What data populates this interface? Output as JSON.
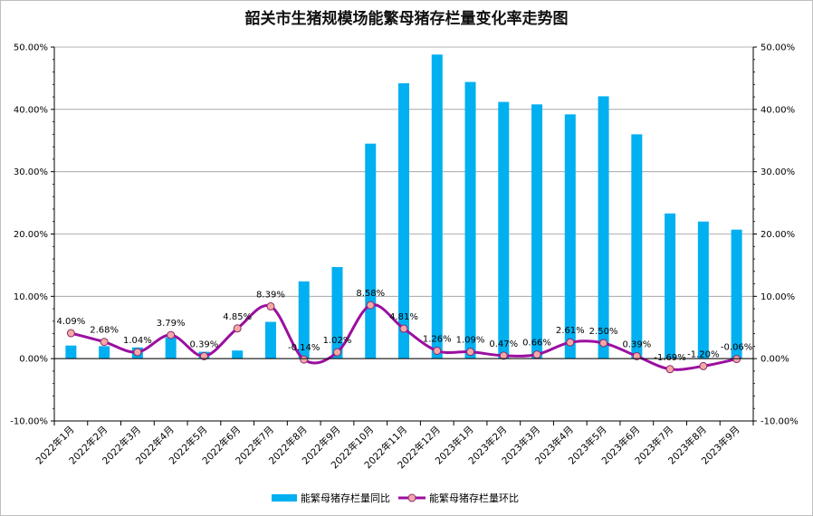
{
  "chart_data": {
    "type": "bar+line",
    "title": "韶关市生猪规模场能繁母猪存栏量变化率走势图",
    "categories": [
      "2022年1月",
      "2022年2月",
      "2022年3月",
      "2022年4月",
      "2022年5月",
      "2022年6月",
      "2022年7月",
      "2022年8月",
      "2022年9月",
      "2022年10月",
      "2022年11月",
      "2022年12月",
      "2023年1月",
      "2023年2月",
      "2023年3月",
      "2023年4月",
      "2023年5月",
      "2023年6月",
      "2023年7月",
      "2023年8月",
      "2023年9月"
    ],
    "series": [
      {
        "name": "能繁母猪存栏量同比",
        "type": "bar",
        "color": "#00b0f0",
        "values": [
          2.1,
          2.0,
          1.8,
          3.4,
          1.1,
          1.3,
          5.9,
          12.4,
          14.7,
          34.5,
          44.2,
          48.8,
          44.4,
          41.2,
          40.8,
          39.2,
          42.1,
          36.0,
          23.3,
          22.0,
          20.7
        ]
      },
      {
        "name": "能繁母猪存栏量环比",
        "type": "line",
        "color": "#9b0fa0",
        "marker_color": "#f4a9a8",
        "values": [
          4.09,
          2.68,
          1.04,
          3.79,
          0.39,
          4.85,
          8.39,
          -0.14,
          1.02,
          8.58,
          4.81,
          1.26,
          1.09,
          0.47,
          0.66,
          2.61,
          2.5,
          0.39,
          -1.69,
          -1.2,
          -0.06
        ],
        "labels": [
          "4.09%",
          "2.68%",
          "1.04%",
          "3.79%",
          "0.39%",
          "4.85%",
          "8.39%",
          "-0.14%",
          "1.02%",
          "8.58%",
          "4.81%",
          "1.26%",
          "1.09%",
          "0.47%",
          "0.66%",
          "2.61%",
          "2.50%",
          "0.39%",
          "-1.69%",
          "-1.20%",
          "-0.06%"
        ]
      }
    ],
    "y_ticks": [
      "50.00%",
      "40.00%",
      "30.00%",
      "20.00%",
      "10.00%",
      "0.00%",
      "-10.00%"
    ],
    "y_tick_values": [
      50,
      40,
      30,
      20,
      10,
      0,
      -10
    ],
    "ylim": [
      -10,
      50
    ],
    "y2lim": [
      -10,
      50
    ],
    "grid": true,
    "legend_position": "bottom"
  }
}
